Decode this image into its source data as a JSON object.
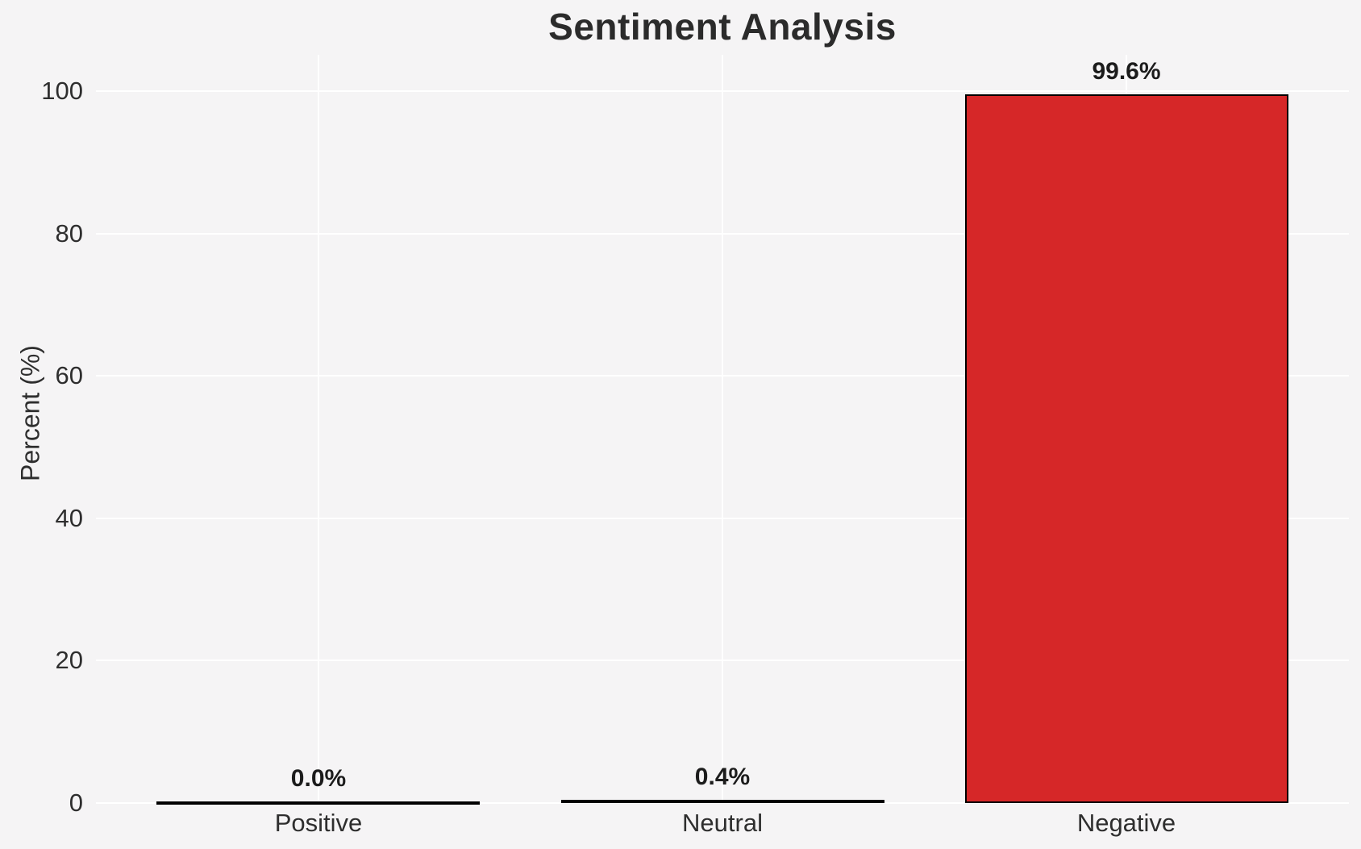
{
  "chart_data": {
    "type": "bar",
    "title": "Sentiment Analysis",
    "xlabel": "",
    "ylabel": "Percent (%)",
    "categories": [
      "Positive",
      "Neutral",
      "Negative"
    ],
    "values": [
      0.0,
      0.4,
      99.6
    ],
    "value_labels": [
      "0.0%",
      "0.4%",
      "99.6%"
    ],
    "yticks": [
      0,
      20,
      40,
      60,
      80,
      100
    ],
    "ylim": [
      0,
      104.6
    ],
    "grid": "on",
    "legend": "none",
    "bar_fill_colors": [
      "#000000",
      "#000000",
      "#d62728"
    ],
    "bar_edge_color": "#000000",
    "background_color": "#f5f4f5",
    "gridline_color": "#ffffff",
    "title_color": "#2b2b2b",
    "tick_label_color": "#2e2e2e",
    "value_label_color": "#1c1c1c"
  }
}
